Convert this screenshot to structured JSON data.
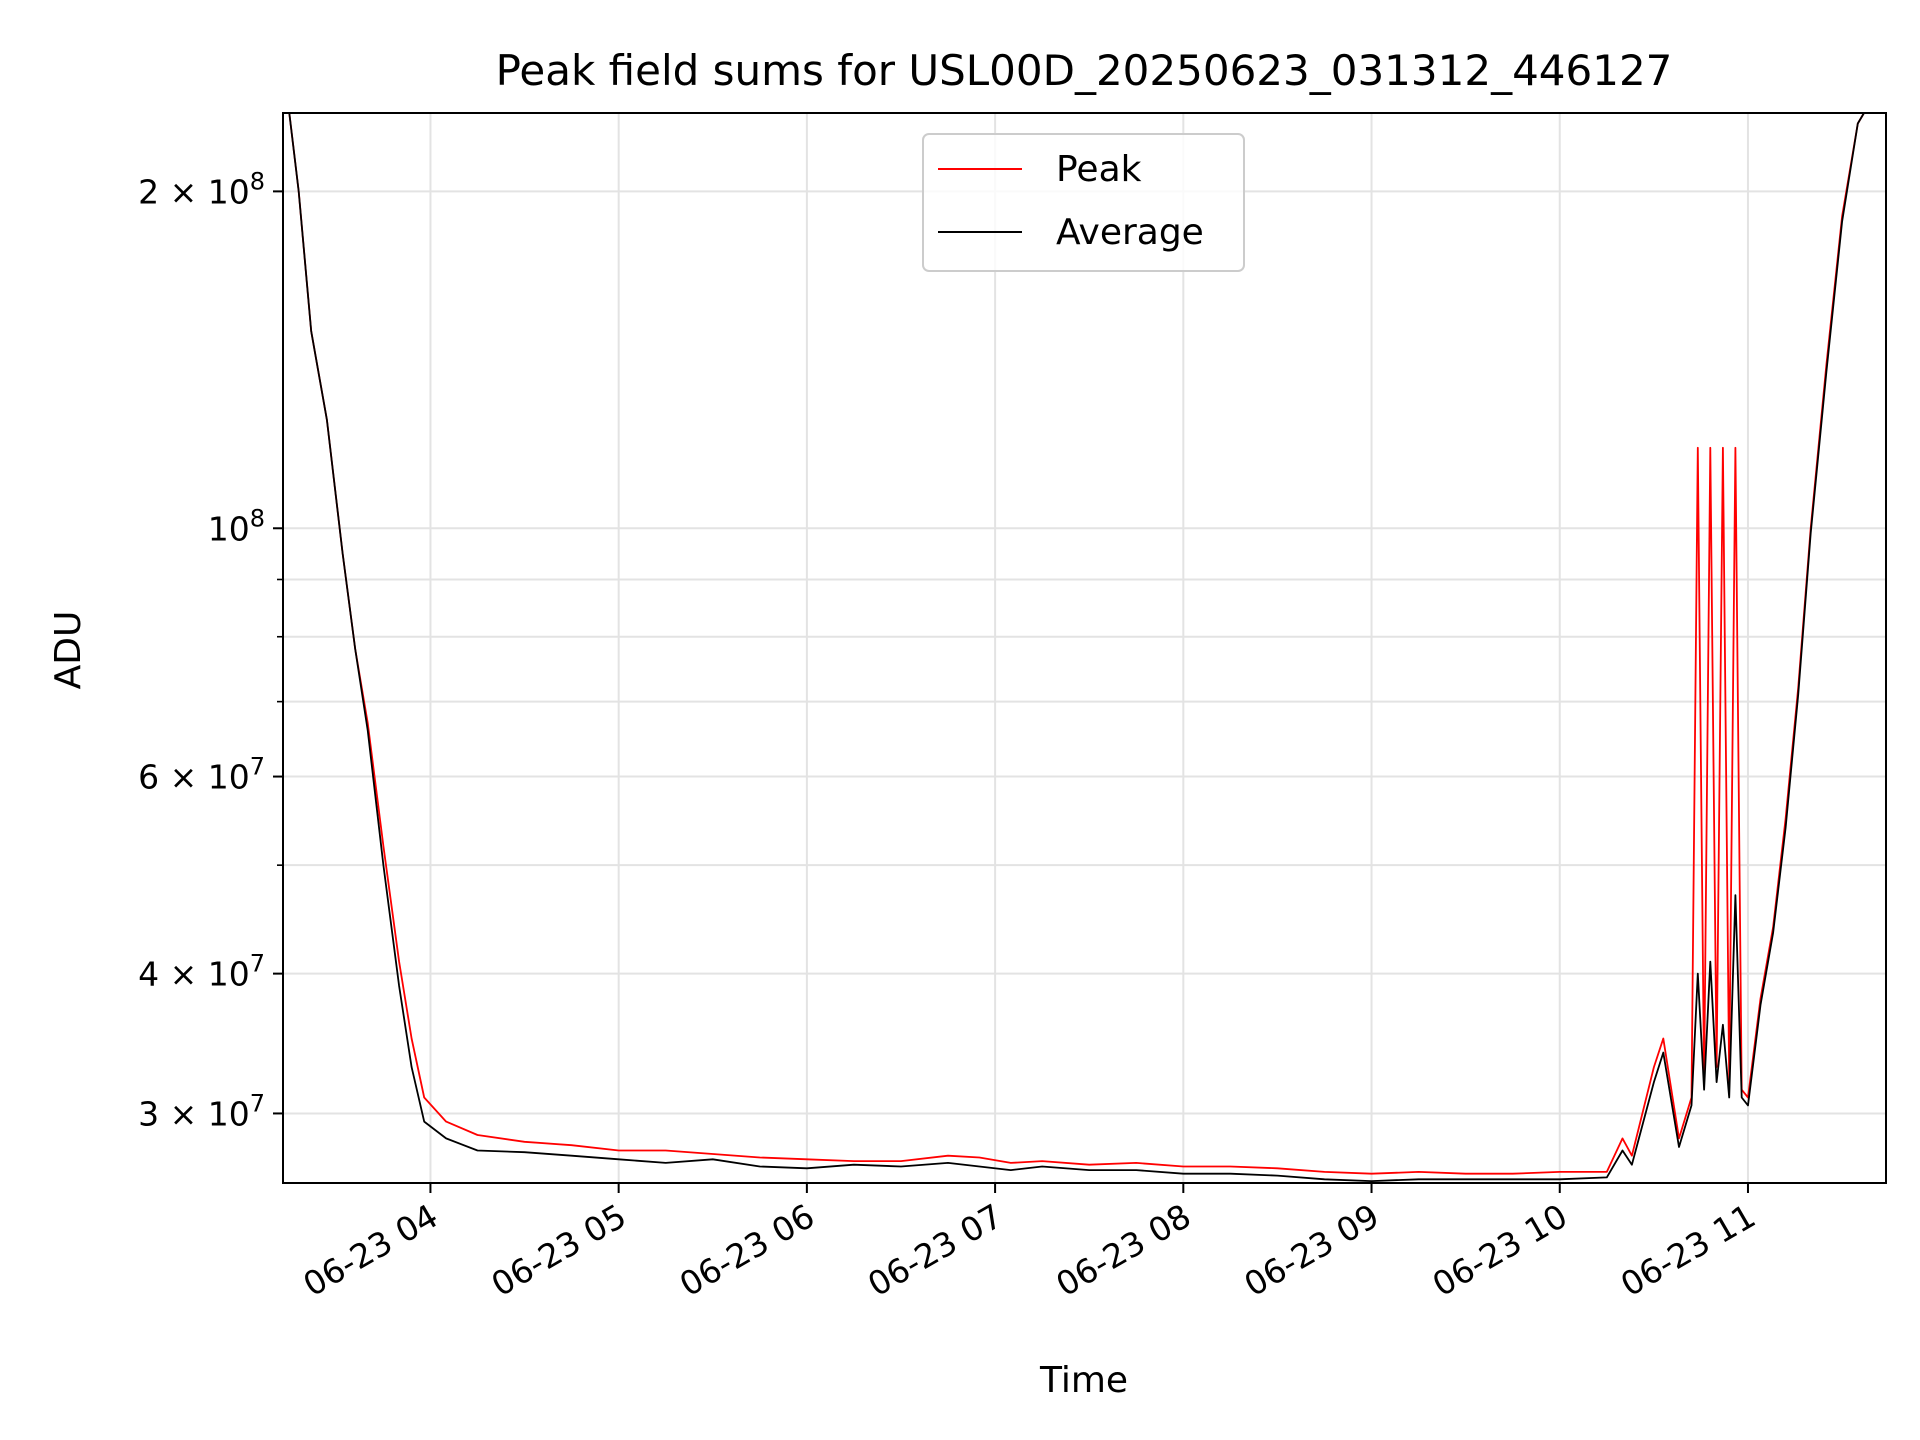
{
  "chart_data": {
    "type": "line",
    "title": "Peak field sums for USL00D_20250623_031312_446127",
    "xlabel": "Time",
    "ylabel": "ADU",
    "y_scale": "log",
    "ylim": [
      26000000,
      235000000
    ],
    "xlim": [
      "2025-06-23 03:13",
      "2025-06-23 11:44"
    ],
    "grid": true,
    "legend_position": "upper center",
    "x_ticks": [
      {
        "label": "06-23 04",
        "value": "2025-06-23 04:00"
      },
      {
        "label": "06-23 05",
        "value": "2025-06-23 05:00"
      },
      {
        "label": "06-23 06",
        "value": "2025-06-23 06:00"
      },
      {
        "label": "06-23 07",
        "value": "2025-06-23 07:00"
      },
      {
        "label": "06-23 08",
        "value": "2025-06-23 08:00"
      },
      {
        "label": "06-23 09",
        "value": "2025-06-23 09:00"
      },
      {
        "label": "06-23 10",
        "value": "2025-06-23 10:00"
      },
      {
        "label": "06-23 11",
        "value": "2025-06-23 11:00"
      }
    ],
    "y_major_ticks": [
      {
        "label": "2×10⁸",
        "value": 200000000,
        "mantissa": "2 × 10",
        "exp": "8"
      },
      {
        "label": "10⁸",
        "value": 100000000,
        "mantissa": "10",
        "exp": "8"
      },
      {
        "label": "6×10⁷",
        "value": 60000000,
        "mantissa": "6 × 10",
        "exp": "7"
      },
      {
        "label": "4×10⁷",
        "value": 40000000,
        "mantissa": "4 × 10",
        "exp": "7"
      },
      {
        "label": "3×10⁷",
        "value": 30000000,
        "mantissa": "3 × 10",
        "exp": "7"
      }
    ],
    "y_minor_ticks": [
      90000000,
      80000000,
      70000000,
      50000000
    ],
    "series": [
      {
        "name": "Peak",
        "color": "#ff0000",
        "points": [
          [
            "2025-06-23 03:15",
            235000000
          ],
          [
            "2025-06-23 03:18",
            200000000
          ],
          [
            "2025-06-23 03:22",
            150000000
          ],
          [
            "2025-06-23 03:27",
            125000000
          ],
          [
            "2025-06-23 03:32",
            95000000
          ],
          [
            "2025-06-23 03:36",
            78000000
          ],
          [
            "2025-06-23 03:40",
            67000000
          ],
          [
            "2025-06-23 03:45",
            52000000
          ],
          [
            "2025-06-23 03:50",
            41000000
          ],
          [
            "2025-06-23 03:54",
            35000000
          ],
          [
            "2025-06-23 03:58",
            31000000
          ],
          [
            "2025-06-23 04:05",
            29500000
          ],
          [
            "2025-06-23 04:15",
            28700000
          ],
          [
            "2025-06-23 04:30",
            28300000
          ],
          [
            "2025-06-23 04:45",
            28100000
          ],
          [
            "2025-06-23 05:00",
            27800000
          ],
          [
            "2025-06-23 05:15",
            27800000
          ],
          [
            "2025-06-23 05:30",
            27600000
          ],
          [
            "2025-06-23 05:45",
            27400000
          ],
          [
            "2025-06-23 06:00",
            27300000
          ],
          [
            "2025-06-23 06:15",
            27200000
          ],
          [
            "2025-06-23 06:30",
            27200000
          ],
          [
            "2025-06-23 06:45",
            27500000
          ],
          [
            "2025-06-23 06:55",
            27400000
          ],
          [
            "2025-06-23 07:05",
            27100000
          ],
          [
            "2025-06-23 07:15",
            27200000
          ],
          [
            "2025-06-23 07:30",
            27000000
          ],
          [
            "2025-06-23 07:45",
            27100000
          ],
          [
            "2025-06-23 08:00",
            26900000
          ],
          [
            "2025-06-23 08:15",
            26900000
          ],
          [
            "2025-06-23 08:30",
            26800000
          ],
          [
            "2025-06-23 08:45",
            26600000
          ],
          [
            "2025-06-23 09:00",
            26500000
          ],
          [
            "2025-06-23 09:15",
            26600000
          ],
          [
            "2025-06-23 09:30",
            26500000
          ],
          [
            "2025-06-23 09:45",
            26500000
          ],
          [
            "2025-06-23 10:00",
            26600000
          ],
          [
            "2025-06-23 10:15",
            26600000
          ],
          [
            "2025-06-23 10:20",
            28500000
          ],
          [
            "2025-06-23 10:23",
            27500000
          ],
          [
            "2025-06-23 10:30",
            33000000
          ],
          [
            "2025-06-23 10:33",
            35000000
          ],
          [
            "2025-06-23 10:38",
            28500000
          ],
          [
            "2025-06-23 10:42",
            31000000
          ],
          [
            "2025-06-23 10:44",
            118000000
          ],
          [
            "2025-06-23 10:46",
            32000000
          ],
          [
            "2025-06-23 10:48",
            118000000
          ],
          [
            "2025-06-23 10:50",
            33000000
          ],
          [
            "2025-06-23 10:52",
            118000000
          ],
          [
            "2025-06-23 10:54",
            32000000
          ],
          [
            "2025-06-23 10:56",
            118000000
          ],
          [
            "2025-06-23 10:58",
            31500000
          ],
          [
            "2025-06-23 11:00",
            31000000
          ],
          [
            "2025-06-23 11:04",
            38000000
          ],
          [
            "2025-06-23 11:08",
            44000000
          ],
          [
            "2025-06-23 11:12",
            55000000
          ],
          [
            "2025-06-23 11:16",
            72000000
          ],
          [
            "2025-06-23 11:20",
            100000000
          ],
          [
            "2025-06-23 11:25",
            140000000
          ],
          [
            "2025-06-23 11:30",
            190000000
          ],
          [
            "2025-06-23 11:35",
            230000000
          ],
          [
            "2025-06-23 11:37",
            235000000
          ]
        ]
      },
      {
        "name": "Average",
        "color": "#000000",
        "points": [
          [
            "2025-06-23 03:15",
            235000000
          ],
          [
            "2025-06-23 03:18",
            200000000
          ],
          [
            "2025-06-23 03:22",
            150000000
          ],
          [
            "2025-06-23 03:27",
            125000000
          ],
          [
            "2025-06-23 03:32",
            95000000
          ],
          [
            "2025-06-23 03:36",
            78000000
          ],
          [
            "2025-06-23 03:40",
            66000000
          ],
          [
            "2025-06-23 03:45",
            50000000
          ],
          [
            "2025-06-23 03:50",
            39000000
          ],
          [
            "2025-06-23 03:54",
            33000000
          ],
          [
            "2025-06-23 03:58",
            29500000
          ],
          [
            "2025-06-23 04:05",
            28500000
          ],
          [
            "2025-06-23 04:15",
            27800000
          ],
          [
            "2025-06-23 04:30",
            27700000
          ],
          [
            "2025-06-23 04:45",
            27500000
          ],
          [
            "2025-06-23 05:00",
            27300000
          ],
          [
            "2025-06-23 05:15",
            27100000
          ],
          [
            "2025-06-23 05:30",
            27300000
          ],
          [
            "2025-06-23 05:45",
            26900000
          ],
          [
            "2025-06-23 06:00",
            26800000
          ],
          [
            "2025-06-23 06:15",
            27000000
          ],
          [
            "2025-06-23 06:30",
            26900000
          ],
          [
            "2025-06-23 06:45",
            27100000
          ],
          [
            "2025-06-23 06:55",
            26900000
          ],
          [
            "2025-06-23 07:05",
            26700000
          ],
          [
            "2025-06-23 07:15",
            26900000
          ],
          [
            "2025-06-23 07:30",
            26700000
          ],
          [
            "2025-06-23 07:45",
            26700000
          ],
          [
            "2025-06-23 08:00",
            26500000
          ],
          [
            "2025-06-23 08:15",
            26500000
          ],
          [
            "2025-06-23 08:30",
            26400000
          ],
          [
            "2025-06-23 08:45",
            26200000
          ],
          [
            "2025-06-23 09:00",
            26100000
          ],
          [
            "2025-06-23 09:15",
            26200000
          ],
          [
            "2025-06-23 09:30",
            26200000
          ],
          [
            "2025-06-23 09:45",
            26200000
          ],
          [
            "2025-06-23 10:00",
            26200000
          ],
          [
            "2025-06-23 10:15",
            26300000
          ],
          [
            "2025-06-23 10:20",
            27800000
          ],
          [
            "2025-06-23 10:23",
            27000000
          ],
          [
            "2025-06-23 10:30",
            32000000
          ],
          [
            "2025-06-23 10:33",
            34000000
          ],
          [
            "2025-06-23 10:38",
            28000000
          ],
          [
            "2025-06-23 10:42",
            30500000
          ],
          [
            "2025-06-23 10:44",
            40000000
          ],
          [
            "2025-06-23 10:46",
            31500000
          ],
          [
            "2025-06-23 10:48",
            41000000
          ],
          [
            "2025-06-23 10:50",
            32000000
          ],
          [
            "2025-06-23 10:52",
            36000000
          ],
          [
            "2025-06-23 10:54",
            31000000
          ],
          [
            "2025-06-23 10:56",
            47000000
          ],
          [
            "2025-06-23 10:58",
            31000000
          ],
          [
            "2025-06-23 11:00",
            30500000
          ],
          [
            "2025-06-23 11:04",
            37500000
          ],
          [
            "2025-06-23 11:08",
            43500000
          ],
          [
            "2025-06-23 11:12",
            54000000
          ],
          [
            "2025-06-23 11:16",
            71000000
          ],
          [
            "2025-06-23 11:20",
            99000000
          ],
          [
            "2025-06-23 11:25",
            138000000
          ],
          [
            "2025-06-23 11:30",
            188000000
          ],
          [
            "2025-06-23 11:35",
            230000000
          ],
          [
            "2025-06-23 11:37",
            235000000
          ]
        ]
      }
    ]
  }
}
